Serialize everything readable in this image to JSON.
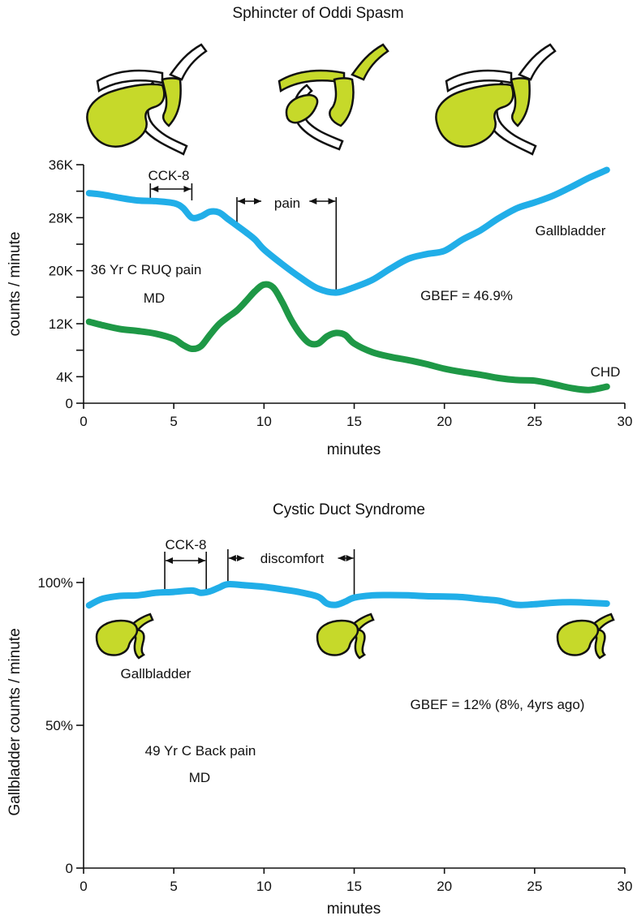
{
  "colors": {
    "gallbladder_curve": "#21aee8",
    "chd_curve": "#1e9846",
    "organ_fill": "#c6d92a"
  },
  "icons": [
    "gallbladder-duct-diagram-icon"
  ],
  "chart_data": [
    {
      "type": "line",
      "title": "Sphincter of Oddi Spasm",
      "xlabel": "minutes",
      "ylabel": "counts / minute",
      "xlim": [
        0,
        30
      ],
      "ylim": [
        0,
        36000
      ],
      "xticks": [
        0,
        5,
        10,
        15,
        20,
        25,
        30
      ],
      "xtick_labels": [
        "0",
        "5",
        "10",
        "15",
        "20",
        "25",
        "30"
      ],
      "yticks_labeled": [
        0,
        4000,
        12000,
        20000,
        28000,
        36000
      ],
      "ytick_labels": [
        "0",
        "4K",
        "12K",
        "20K",
        "28K",
        "36K"
      ],
      "yticks_minor": [
        8000,
        16000,
        24000,
        32000
      ],
      "series": [
        {
          "name": "Gallbladder",
          "color": "#21aee8",
          "x": [
            0.3,
            1,
            2,
            3,
            4,
            5,
            5.5,
            6,
            6.5,
            7,
            7.5,
            8,
            8.5,
            9,
            9.5,
            10,
            11,
            12,
            13,
            14,
            15,
            16,
            17,
            18,
            19,
            20,
            21,
            22,
            23,
            24,
            25,
            26,
            27,
            28,
            29
          ],
          "values": [
            31700,
            31500,
            31000,
            30600,
            30500,
            30200,
            29500,
            28000,
            28200,
            28900,
            28800,
            27800,
            26800,
            25800,
            24700,
            23200,
            21000,
            19000,
            17300,
            16700,
            17500,
            18600,
            20300,
            21800,
            22500,
            23000,
            24700,
            26100,
            27900,
            29400,
            30300,
            31300,
            32600,
            34000,
            35200
          ]
        },
        {
          "name": "CHD",
          "color": "#1e9846",
          "x": [
            0.3,
            1,
            2,
            3,
            4,
            5,
            5.5,
            6,
            6.5,
            7,
            7.5,
            8,
            8.5,
            9,
            9.5,
            10,
            10.5,
            11,
            11.5,
            12,
            12.5,
            13,
            13.5,
            14,
            14.5,
            15,
            16,
            17,
            18,
            19,
            20,
            21,
            22,
            23,
            24,
            25,
            26,
            27,
            28,
            29
          ],
          "values": [
            12300,
            11800,
            11200,
            10900,
            10500,
            9700,
            8800,
            8200,
            8600,
            10300,
            11900,
            13000,
            14000,
            15400,
            16900,
            17900,
            17500,
            15300,
            12600,
            10500,
            9100,
            9000,
            10100,
            10600,
            10300,
            9000,
            7700,
            7000,
            6500,
            5900,
            5200,
            4700,
            4300,
            3800,
            3500,
            3400,
            2900,
            2300,
            2000,
            2500
          ]
        }
      ],
      "annotations": {
        "cck8_label": "CCK-8",
        "cck8_range": [
          3.7,
          6
        ],
        "pain_label": "pain",
        "pain_range": [
          8.5,
          14
        ],
        "gallbladder_label": "Gallbladder",
        "chd_label": "CHD",
        "patient_line1": "36 Yr C RUQ pain",
        "patient_line2": "MD",
        "gbef": "GBEF = 46.9%"
      }
    },
    {
      "type": "line",
      "title": "Cystic Duct Syndrome",
      "xlabel": "minutes",
      "ylabel": "Gallbladder counts / minute",
      "xlim": [
        0,
        30
      ],
      "ylim": [
        0,
        100
      ],
      "xticks": [
        0,
        5,
        10,
        15,
        20,
        25,
        30
      ],
      "xtick_labels": [
        "0",
        "5",
        "10",
        "15",
        "20",
        "25",
        "30"
      ],
      "yticks_labeled": [
        0,
        50,
        100
      ],
      "ytick_labels": [
        "0",
        "50%",
        "100%"
      ],
      "series": [
        {
          "name": "Gallbladder",
          "color": "#21aee8",
          "x": [
            0.3,
            1,
            2,
            3,
            4,
            5,
            6,
            6.5,
            7,
            7.5,
            8,
            9,
            10,
            11,
            12,
            13,
            13.5,
            14,
            14.5,
            15,
            16,
            17,
            18,
            19,
            20,
            21,
            22,
            23,
            24,
            25,
            26,
            27,
            28,
            29
          ],
          "values": [
            92,
            94.2,
            95.3,
            95.5,
            96.4,
            96.7,
            97.2,
            96.4,
            96.9,
            98.2,
            99.4,
            99,
            98.5,
            97.6,
            96.6,
            95,
            92.6,
            92.2,
            93.3,
            94.7,
            95.5,
            95.6,
            95.5,
            95.2,
            95.1,
            94.9,
            94.2,
            93.6,
            92.2,
            92.4,
            92.9,
            93.1,
            92.9,
            92.6
          ]
        }
      ],
      "annotations": {
        "cck8_label": "CCK-8",
        "cck8_range": [
          4.5,
          6.8
        ],
        "discomfort_label": "discomfort",
        "discomfort_range": [
          8,
          15
        ],
        "gallbladder_label": "Gallbladder",
        "patient_line1": "49 Yr C Back pain",
        "patient_line2": "MD",
        "gbef": "GBEF = 12% (8%, 4yrs ago)"
      }
    }
  ]
}
